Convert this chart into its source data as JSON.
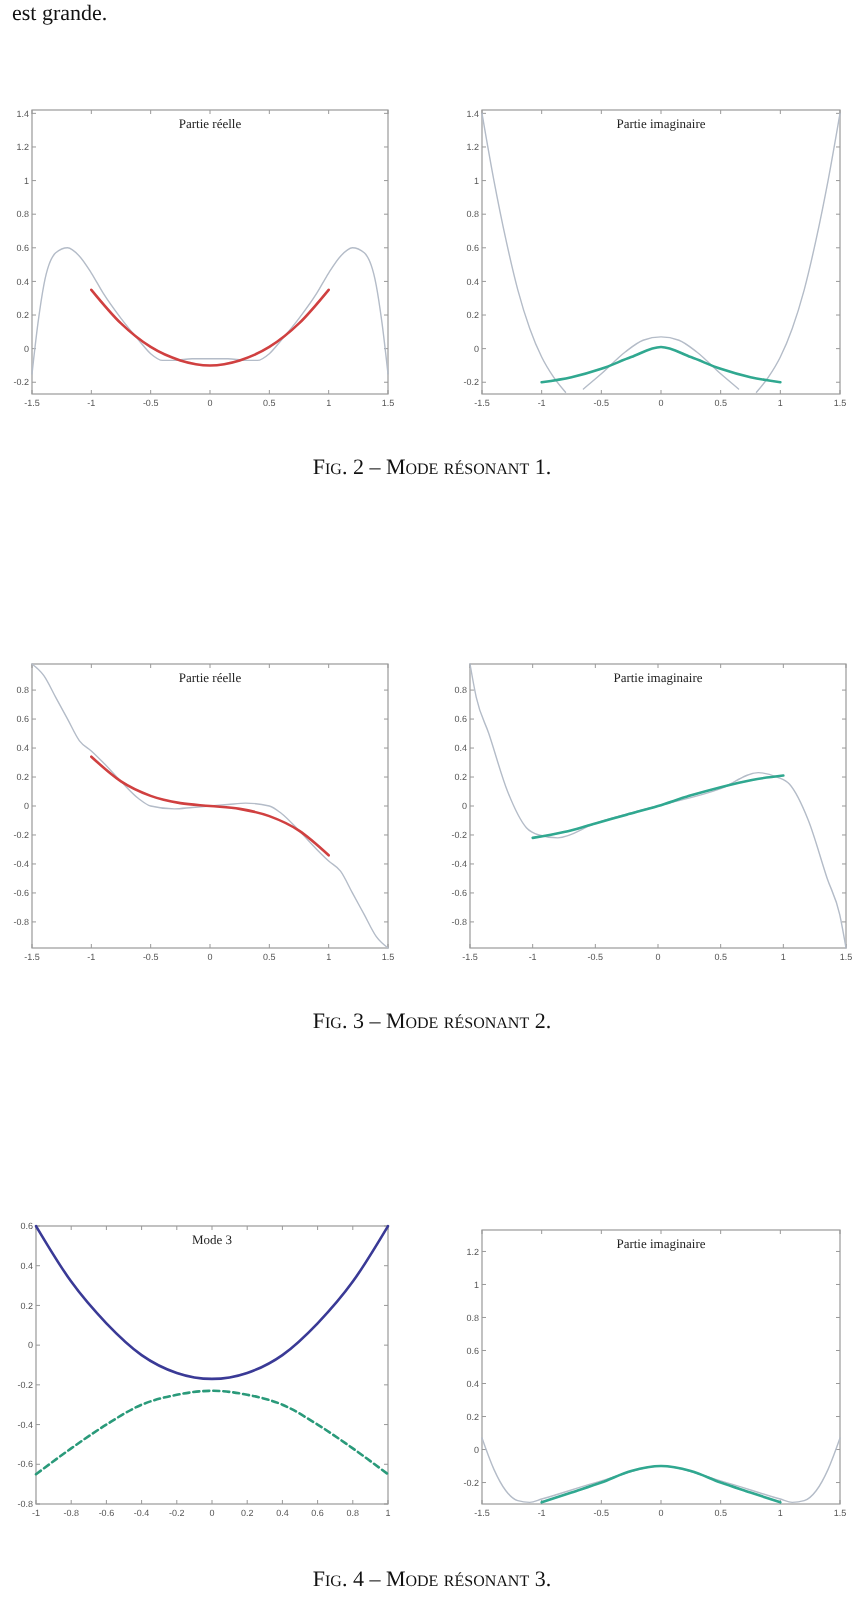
{
  "chart_data": [
    {
      "type": "line",
      "title": "Partie réelle",
      "annotations": [
        "est grande.",
        "Fig. 2 – Mode résonant 1."
      ],
      "xlim": [
        -1.5,
        1.5
      ],
      "xticks": [
        -1.5,
        -1,
        -0.5,
        0,
        0.5,
        1,
        1.5
      ],
      "ylim": [
        -0.27,
        1.42
      ],
      "yticks": [
        -0.2,
        0,
        0.2,
        0.4,
        0.6,
        0.8,
        1,
        1.2,
        1.4
      ],
      "series": [
        {
          "color": "#b4bcc8",
          "x": [
            -1.5,
            -1.45,
            -1.4,
            -1.3,
            -1.2,
            -1.1,
            -1,
            -0.9,
            -0.75,
            -0.6,
            -0.5,
            -0.4,
            -0.3,
            -0.15,
            0,
            0.15,
            0.3,
            0.4,
            0.5,
            0.6,
            0.75,
            0.9,
            1,
            1.1,
            1.2,
            1.3,
            1.4,
            1.45,
            1.5
          ],
          "values": [
            -0.15,
            0.15,
            0.38,
            0.57,
            0.6,
            0.55,
            0.45,
            0.33,
            0.18,
            0.05,
            -0.03,
            -0.07,
            -0.07,
            -0.06,
            -0.06,
            -0.06,
            -0.07,
            -0.07,
            -0.03,
            0.05,
            0.18,
            0.33,
            0.45,
            0.55,
            0.6,
            0.57,
            0.38,
            0.15,
            -0.15
          ]
        },
        {
          "color": "#d04040",
          "x": [
            -1,
            -0.75,
            -0.5,
            -0.25,
            0,
            0.25,
            0.5,
            0.75,
            1
          ],
          "values": [
            0.35,
            0.15,
            0.01,
            -0.07,
            -0.1,
            -0.07,
            0.01,
            0.15,
            0.35
          ]
        }
      ]
    },
    {
      "type": "line",
      "title": "Partie imaginaire",
      "xlim": [
        -1.5,
        1.5
      ],
      "xticks": [
        -1.5,
        -1,
        -0.5,
        0,
        0.5,
        1,
        1.5
      ],
      "ylim": [
        -0.27,
        1.42
      ],
      "yticks": [
        -0.2,
        0,
        0.2,
        0.4,
        0.6,
        0.8,
        1,
        1.2,
        1.4
      ],
      "series": [
        {
          "color": "#b4bcc8",
          "x": [
            -1.5,
            -1.4,
            -1.3,
            -1.2,
            -1.1,
            -1,
            -0.9,
            -0.8,
            -0.75,
            -0.7,
            -0.65,
            -0.5,
            -0.3,
            -0.15,
            0,
            0.15,
            0.3,
            0.5,
            0.65,
            0.7,
            0.75,
            0.8,
            0.9,
            1,
            1.1,
            1.2,
            1.3,
            1.4,
            1.5
          ],
          "values": [
            1.4,
            1.0,
            0.65,
            0.35,
            0.12,
            -0.05,
            -0.17,
            -0.26,
            null,
            null,
            -0.24,
            -0.15,
            -0.02,
            0.05,
            0.07,
            0.05,
            -0.02,
            -0.15,
            -0.24,
            null,
            null,
            -0.26,
            -0.17,
            -0.05,
            0.12,
            0.35,
            0.65,
            1.0,
            1.4
          ]
        },
        {
          "color": "#30a890",
          "x": [
            -1,
            -0.75,
            -0.5,
            -0.25,
            0,
            0.25,
            0.5,
            0.75,
            1
          ],
          "values": [
            -0.2,
            -0.17,
            -0.12,
            -0.05,
            0.01,
            -0.05,
            -0.12,
            -0.17,
            -0.2
          ]
        }
      ]
    },
    {
      "type": "line",
      "title": "Partie réelle",
      "annotations": [
        "Fig. 3 – Mode résonant 2."
      ],
      "xlim": [
        -1.5,
        1.5
      ],
      "xticks": [
        -1.5,
        -1,
        -0.5,
        0,
        0.5,
        1,
        1.5
      ],
      "ylim": [
        -0.98,
        0.98
      ],
      "yticks": [
        -0.8,
        -0.6,
        -0.4,
        -0.2,
        0,
        0.2,
        0.4,
        0.6,
        0.8
      ],
      "series": [
        {
          "color": "#b4bcc8",
          "x": [
            -1.5,
            -1.4,
            -1.3,
            -1.2,
            -1.1,
            -1,
            -0.9,
            -0.75,
            -0.6,
            -0.5,
            -0.3,
            -0.15,
            0,
            0.15,
            0.3,
            0.5,
            0.6,
            0.75,
            0.9,
            1,
            1.1,
            1.2,
            1.3,
            1.4,
            1.5
          ],
          "values": [
            0.98,
            0.9,
            0.75,
            0.6,
            0.45,
            0.38,
            0.3,
            0.17,
            0.05,
            0.0,
            -0.02,
            -0.01,
            0,
            0.01,
            0.02,
            0.0,
            -0.05,
            -0.17,
            -0.3,
            -0.38,
            -0.45,
            -0.6,
            -0.75,
            -0.9,
            -0.98
          ]
        },
        {
          "color": "#d04040",
          "x": [
            -1,
            -0.75,
            -0.5,
            -0.25,
            0,
            0.25,
            0.5,
            0.75,
            1
          ],
          "values": [
            0.34,
            0.17,
            0.07,
            0.02,
            0,
            -0.02,
            -0.07,
            -0.17,
            -0.34
          ]
        }
      ]
    },
    {
      "type": "line",
      "title": "Partie imaginaire",
      "xlim": [
        -1.5,
        1.5
      ],
      "xticks": [
        -1.5,
        -1,
        -0.5,
        0,
        0.5,
        1,
        1.5
      ],
      "ylim": [
        -0.98,
        0.98
      ],
      "yticks": [
        -0.8,
        -0.6,
        -0.4,
        -0.2,
        0,
        0.2,
        0.4,
        0.6,
        0.8
      ],
      "series": [
        {
          "color": "#b4bcc8",
          "x": [
            -1.5,
            -1.45,
            -1.35,
            -1.2,
            -1.05,
            -0.95,
            -0.8,
            -0.5,
            0,
            0.5,
            0.8,
            0.95,
            1.05,
            1.2,
            1.35,
            1.45,
            1.5
          ],
          "values": [
            0.98,
            0.75,
            0.5,
            0.1,
            -0.15,
            -0.2,
            -0.22,
            -0.12,
            0,
            0.12,
            0.23,
            0.2,
            0.15,
            -0.1,
            -0.5,
            -0.75,
            -0.98
          ]
        },
        {
          "color": "#30a890",
          "x": [
            -1,
            -0.75,
            -0.5,
            -0.25,
            0,
            0.25,
            0.5,
            0.75,
            1
          ],
          "values": [
            -0.22,
            -0.18,
            -0.12,
            -0.06,
            0,
            0.07,
            0.13,
            0.18,
            0.21
          ]
        }
      ]
    },
    {
      "type": "line",
      "title": "Mode 3",
      "annotations": [
        "Fig. 4 – Mode résonant 3."
      ],
      "xlim": [
        -1,
        1
      ],
      "xticks": [
        -1,
        -0.8,
        -0.6,
        -0.4,
        -0.2,
        0,
        0.2,
        0.4,
        0.6,
        0.8,
        1
      ],
      "ylim": [
        -0.8,
        0.6
      ],
      "yticks": [
        -0.8,
        -0.6,
        -0.4,
        -0.2,
        0,
        0.2,
        0.4,
        0.6
      ],
      "series": [
        {
          "color": "#3a3a96",
          "x": [
            -1,
            -0.8,
            -0.6,
            -0.4,
            -0.2,
            0,
            0.2,
            0.4,
            0.6,
            0.8,
            1
          ],
          "values": [
            0.6,
            0.32,
            0.11,
            -0.05,
            -0.14,
            -0.17,
            -0.14,
            -0.05,
            0.11,
            0.32,
            0.6
          ]
        },
        {
          "color": "#2a9a7a",
          "line_style": "dashed",
          "x": [
            -1,
            -0.8,
            -0.6,
            -0.4,
            -0.2,
            0,
            0.2,
            0.4,
            0.6,
            0.8,
            1
          ],
          "values": [
            -0.65,
            -0.52,
            -0.4,
            -0.3,
            -0.25,
            -0.23,
            -0.25,
            -0.3,
            -0.4,
            -0.52,
            -0.65
          ]
        }
      ]
    },
    {
      "type": "line",
      "title": "Partie imaginaire",
      "xlim": [
        -1.5,
        1.5
      ],
      "xticks": [
        -1.5,
        -1,
        -0.5,
        0,
        0.5,
        1,
        1.5
      ],
      "ylim": [
        -0.33,
        1.33
      ],
      "yticks": [
        -0.2,
        0,
        0.2,
        0.4,
        0.6,
        0.8,
        1,
        1.2
      ],
      "series": [
        {
          "color": "#b4bcc8",
          "x": [
            -1.5,
            -1.4,
            -1.3,
            -1.2,
            -1.1,
            -1,
            -0.5,
            0,
            0.5,
            1,
            1.1,
            1.2,
            1.3,
            1.4,
            1.5
          ],
          "values": [
            0.07,
            -0.12,
            -0.25,
            -0.31,
            -0.32,
            -0.3,
            -0.19,
            -0.1,
            -0.19,
            -0.3,
            -0.32,
            -0.31,
            -0.25,
            -0.12,
            0.07
          ]
        },
        {
          "color": "#30a890",
          "x": [
            -1,
            -0.75,
            -0.5,
            -0.25,
            0,
            0.25,
            0.5,
            0.75,
            1
          ],
          "values": [
            -0.32,
            -0.26,
            -0.2,
            -0.13,
            -0.1,
            -0.13,
            -0.2,
            -0.26,
            -0.32
          ]
        }
      ]
    }
  ]
}
